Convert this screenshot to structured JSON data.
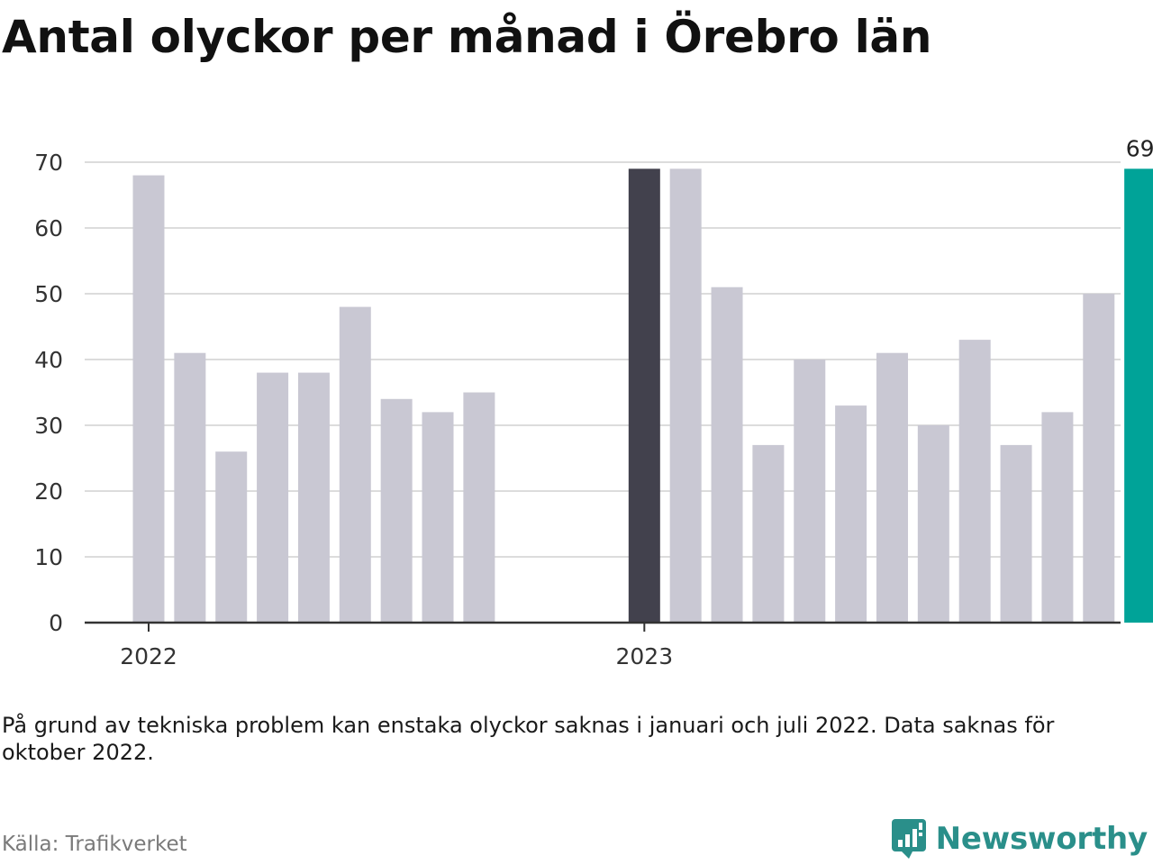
{
  "title": "Antal olyckor per månad i Örebro län",
  "note": "På grund av tekniska problem kan enstaka olyckor saknas i januari och juli 2022. Data saknas för oktober 2022.",
  "source": "Källa: Trafikverket",
  "brand": {
    "name": "Newsworthy",
    "icon": "newsworthy-logo-icon"
  },
  "colors": {
    "bar_default": "#c9c8d3",
    "bar_first_2023": "#42414d",
    "bar_latest": "#00a398",
    "grid": "#dcdcdc",
    "axis": "#333333"
  },
  "chart_data": {
    "type": "bar",
    "ylim": [
      0,
      70
    ],
    "yticks": [
      0,
      10,
      20,
      30,
      40,
      50,
      60,
      70
    ],
    "xlabels": [
      {
        "label": "2022",
        "month": "2022-01"
      },
      {
        "label": "2023",
        "month": "2023-01"
      }
    ],
    "categories": [
      "2022-01",
      "2022-02",
      "2022-03",
      "2022-04",
      "2022-05",
      "2022-06",
      "2022-07",
      "2022-08",
      "2022-09",
      "2022-10",
      "2022-11",
      "2022-12",
      "2023-01",
      "2023-02",
      "2023-03",
      "2023-04",
      "2023-05",
      "2023-06",
      "2023-07",
      "2023-08",
      "2023-09",
      "2023-10",
      "2023-11",
      "2023-12",
      "2024-01"
    ],
    "values": [
      68,
      41,
      26,
      38,
      38,
      48,
      34,
      32,
      35,
      null,
      0,
      0,
      69,
      69,
      51,
      27,
      40,
      33,
      41,
      30,
      43,
      27,
      32,
      50,
      69
    ],
    "highlight": {
      "2023-01": "bar_first_2023",
      "2024-01": "bar_latest"
    },
    "data_labels": [
      {
        "month": "2024-01",
        "text": "69"
      }
    ],
    "grid": true,
    "legend": "none"
  }
}
